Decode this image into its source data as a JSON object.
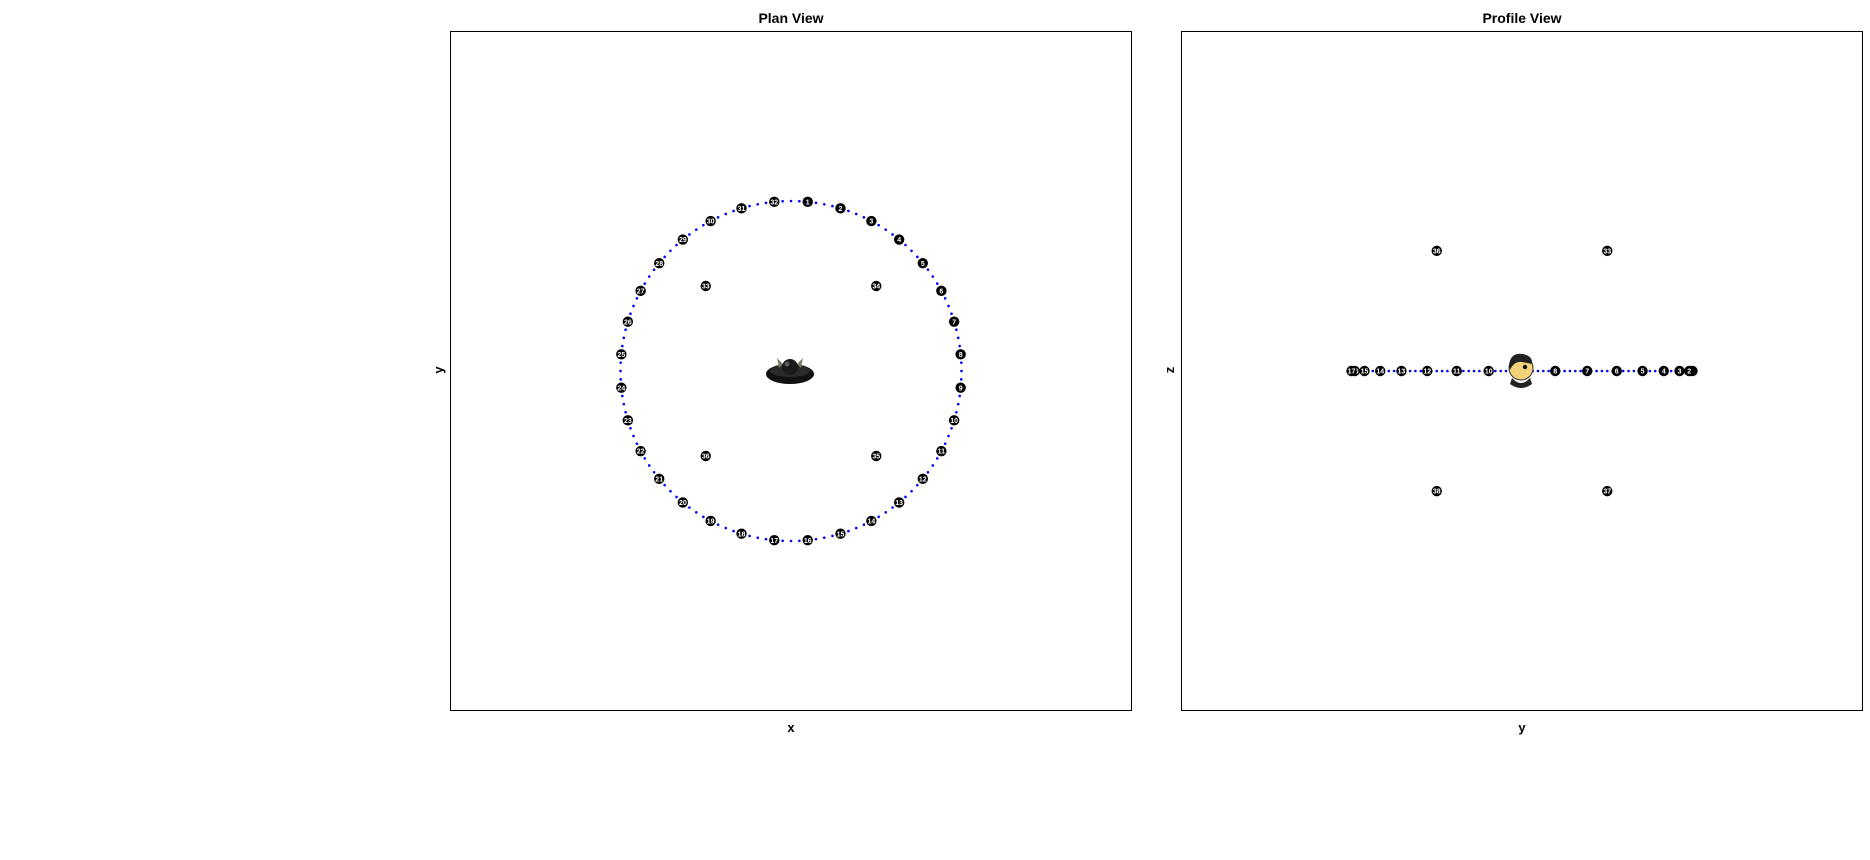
{
  "plots": {
    "plan": {
      "title": "Plan View",
      "xlabel": "x",
      "ylabel": "y"
    },
    "profile": {
      "title": "Profile View",
      "xlabel": "y",
      "ylabel": "z"
    }
  },
  "colors": {
    "path": "#0000ff",
    "marker": "#000000",
    "marker_text": "#ffffff",
    "frame": "#000000"
  },
  "icons": {
    "plan_center": "bat-icon",
    "profile_center": "person-head-icon"
  },
  "chart_data": [
    {
      "type": "scatter",
      "title": "Plan View",
      "xlabel": "x",
      "ylabel": "y",
      "xlim": [
        -1.5,
        1.5
      ],
      "ylim": [
        -1.5,
        1.5
      ],
      "ring": {
        "radius": 0.75,
        "labels": [
          "1",
          "2",
          "3",
          "4",
          "5",
          "6",
          "7",
          "8",
          "9",
          "10",
          "11",
          "12",
          "13",
          "14",
          "15",
          "16",
          "17",
          "18",
          "19",
          "20",
          "21",
          "22",
          "23",
          "24",
          "25",
          "26",
          "27",
          "28",
          "29",
          "30",
          "31",
          "32"
        ]
      },
      "points": [
        {
          "label": "33",
          "x": -0.375,
          "y": 0.375
        },
        {
          "label": "34",
          "x": 0.375,
          "y": 0.375
        },
        {
          "label": "35",
          "x": 0.375,
          "y": -0.375
        },
        {
          "label": "36",
          "x": -0.375,
          "y": -0.375
        }
      ]
    },
    {
      "type": "scatter",
      "title": "Profile View",
      "xlabel": "y",
      "ylabel": "z",
      "xlim": [
        -1.5,
        1.5
      ],
      "ylim": [
        -1.5,
        1.5
      ],
      "ring": {
        "radius": 0.75,
        "labels": [
          "1",
          "2",
          "3",
          "4",
          "5",
          "6",
          "7",
          "8",
          "9",
          "10",
          "11",
          "12",
          "13",
          "14",
          "15",
          "16",
          "17"
        ]
      },
      "points": [
        {
          "label": "33",
          "x": 0.375,
          "y": 0.53
        },
        {
          "label": "36",
          "x": -0.375,
          "y": 0.53
        },
        {
          "label": "37",
          "x": 0.375,
          "y": -0.53
        },
        {
          "label": "38",
          "x": -0.375,
          "y": -0.53
        }
      ]
    }
  ]
}
